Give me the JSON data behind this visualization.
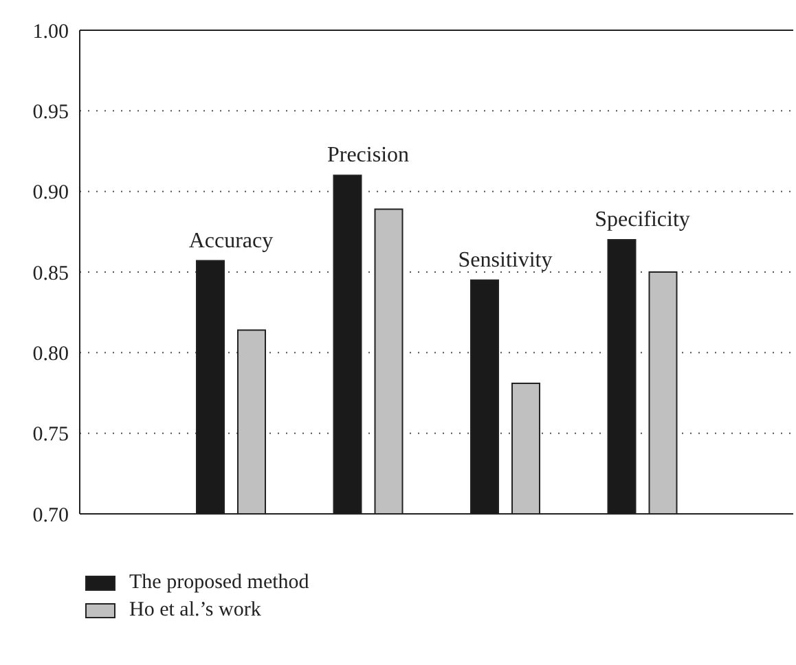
{
  "chart_data": {
    "type": "bar",
    "categories": [
      "Accuracy",
      "Precision",
      "Sensitivity",
      "Specificity"
    ],
    "series": [
      {
        "name": "The proposed method",
        "color": "#1a1a1a",
        "values": [
          0.857,
          0.91,
          0.845,
          0.87
        ]
      },
      {
        "name": "Ho et al.’s work",
        "color": "#c0c0c0",
        "values": [
          0.814,
          0.889,
          0.781,
          0.85
        ]
      }
    ],
    "ylim": [
      0.7,
      1.0
    ],
    "yticks": [
      {
        "value": 0.7,
        "label": "0.70"
      },
      {
        "value": 0.75,
        "label": "0.75"
      },
      {
        "value": 0.8,
        "label": "0.80"
      },
      {
        "value": 0.85,
        "label": "0.85"
      },
      {
        "value": 0.9,
        "label": "0.90"
      },
      {
        "value": 0.95,
        "label": "0.95"
      },
      {
        "value": 1.0,
        "label": "1.00"
      }
    ],
    "grid": "y",
    "legend": "bottom left",
    "tick_labels": "y"
  }
}
